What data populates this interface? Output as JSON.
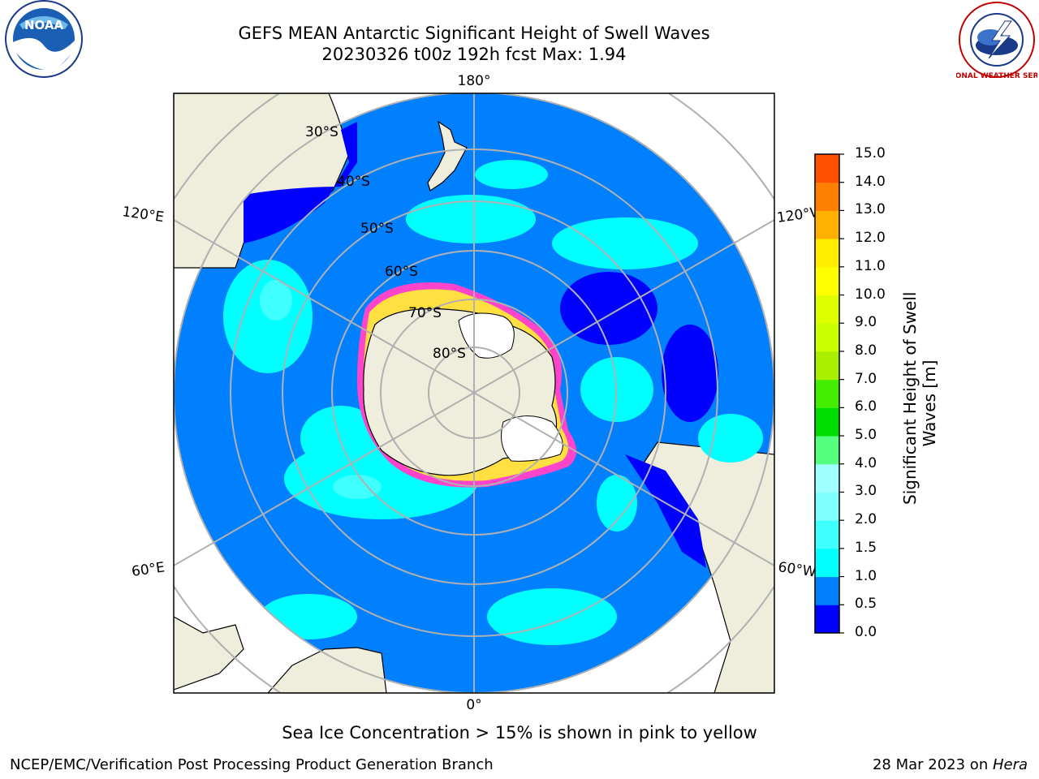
{
  "header": {
    "title_line1": "GEFS MEAN Antarctic Significant Height of Swell Waves",
    "title_line2": "20230326 t00z 192h fcst   Max: 1.94"
  },
  "logos": {
    "left_text": "NOAA",
    "right_text": "NATIONAL WEATHER SERVICE"
  },
  "map": {
    "longitude_labels": {
      "top": "180°",
      "bottom": "0°",
      "upper_left": "120°E",
      "upper_right": "120°W",
      "lower_left": "60°E",
      "lower_right": "60°W"
    },
    "latitude_labels": [
      "30°S",
      "40°S",
      "50°S",
      "60°S",
      "70°S",
      "80°S"
    ]
  },
  "colorbar": {
    "title_line1": "Significant Height of Swell",
    "title_line2": "Waves [m]",
    "ticks": [
      "0.0",
      "0.5",
      "1.0",
      "1.5",
      "2.0",
      "3.0",
      "4.0",
      "5.0",
      "6.0",
      "7.0",
      "8.0",
      "9.0",
      "10.0",
      "11.0",
      "12.0",
      "13.0",
      "14.0",
      "15.0"
    ],
    "colors": [
      "#0000ff",
      "#0080ff",
      "#00ffff",
      "#40ffff",
      "#80ffff",
      "#a0ffff",
      "#55ff80",
      "#00dd00",
      "#44ee00",
      "#aaee00",
      "#ccff00",
      "#ddff00",
      "#ffff00",
      "#ffee00",
      "#ffb000",
      "#ff8000",
      "#ff5000",
      "#ff2000",
      "#ff0000"
    ]
  },
  "note": "Sea Ice Concentration > 15% is shown in pink to yellow",
  "footer": {
    "left": "NCEP/EMC/Verification Post Processing Product Generation Branch",
    "right_prefix": "28 Mar 2023 on ",
    "right_host": "Hera"
  }
}
